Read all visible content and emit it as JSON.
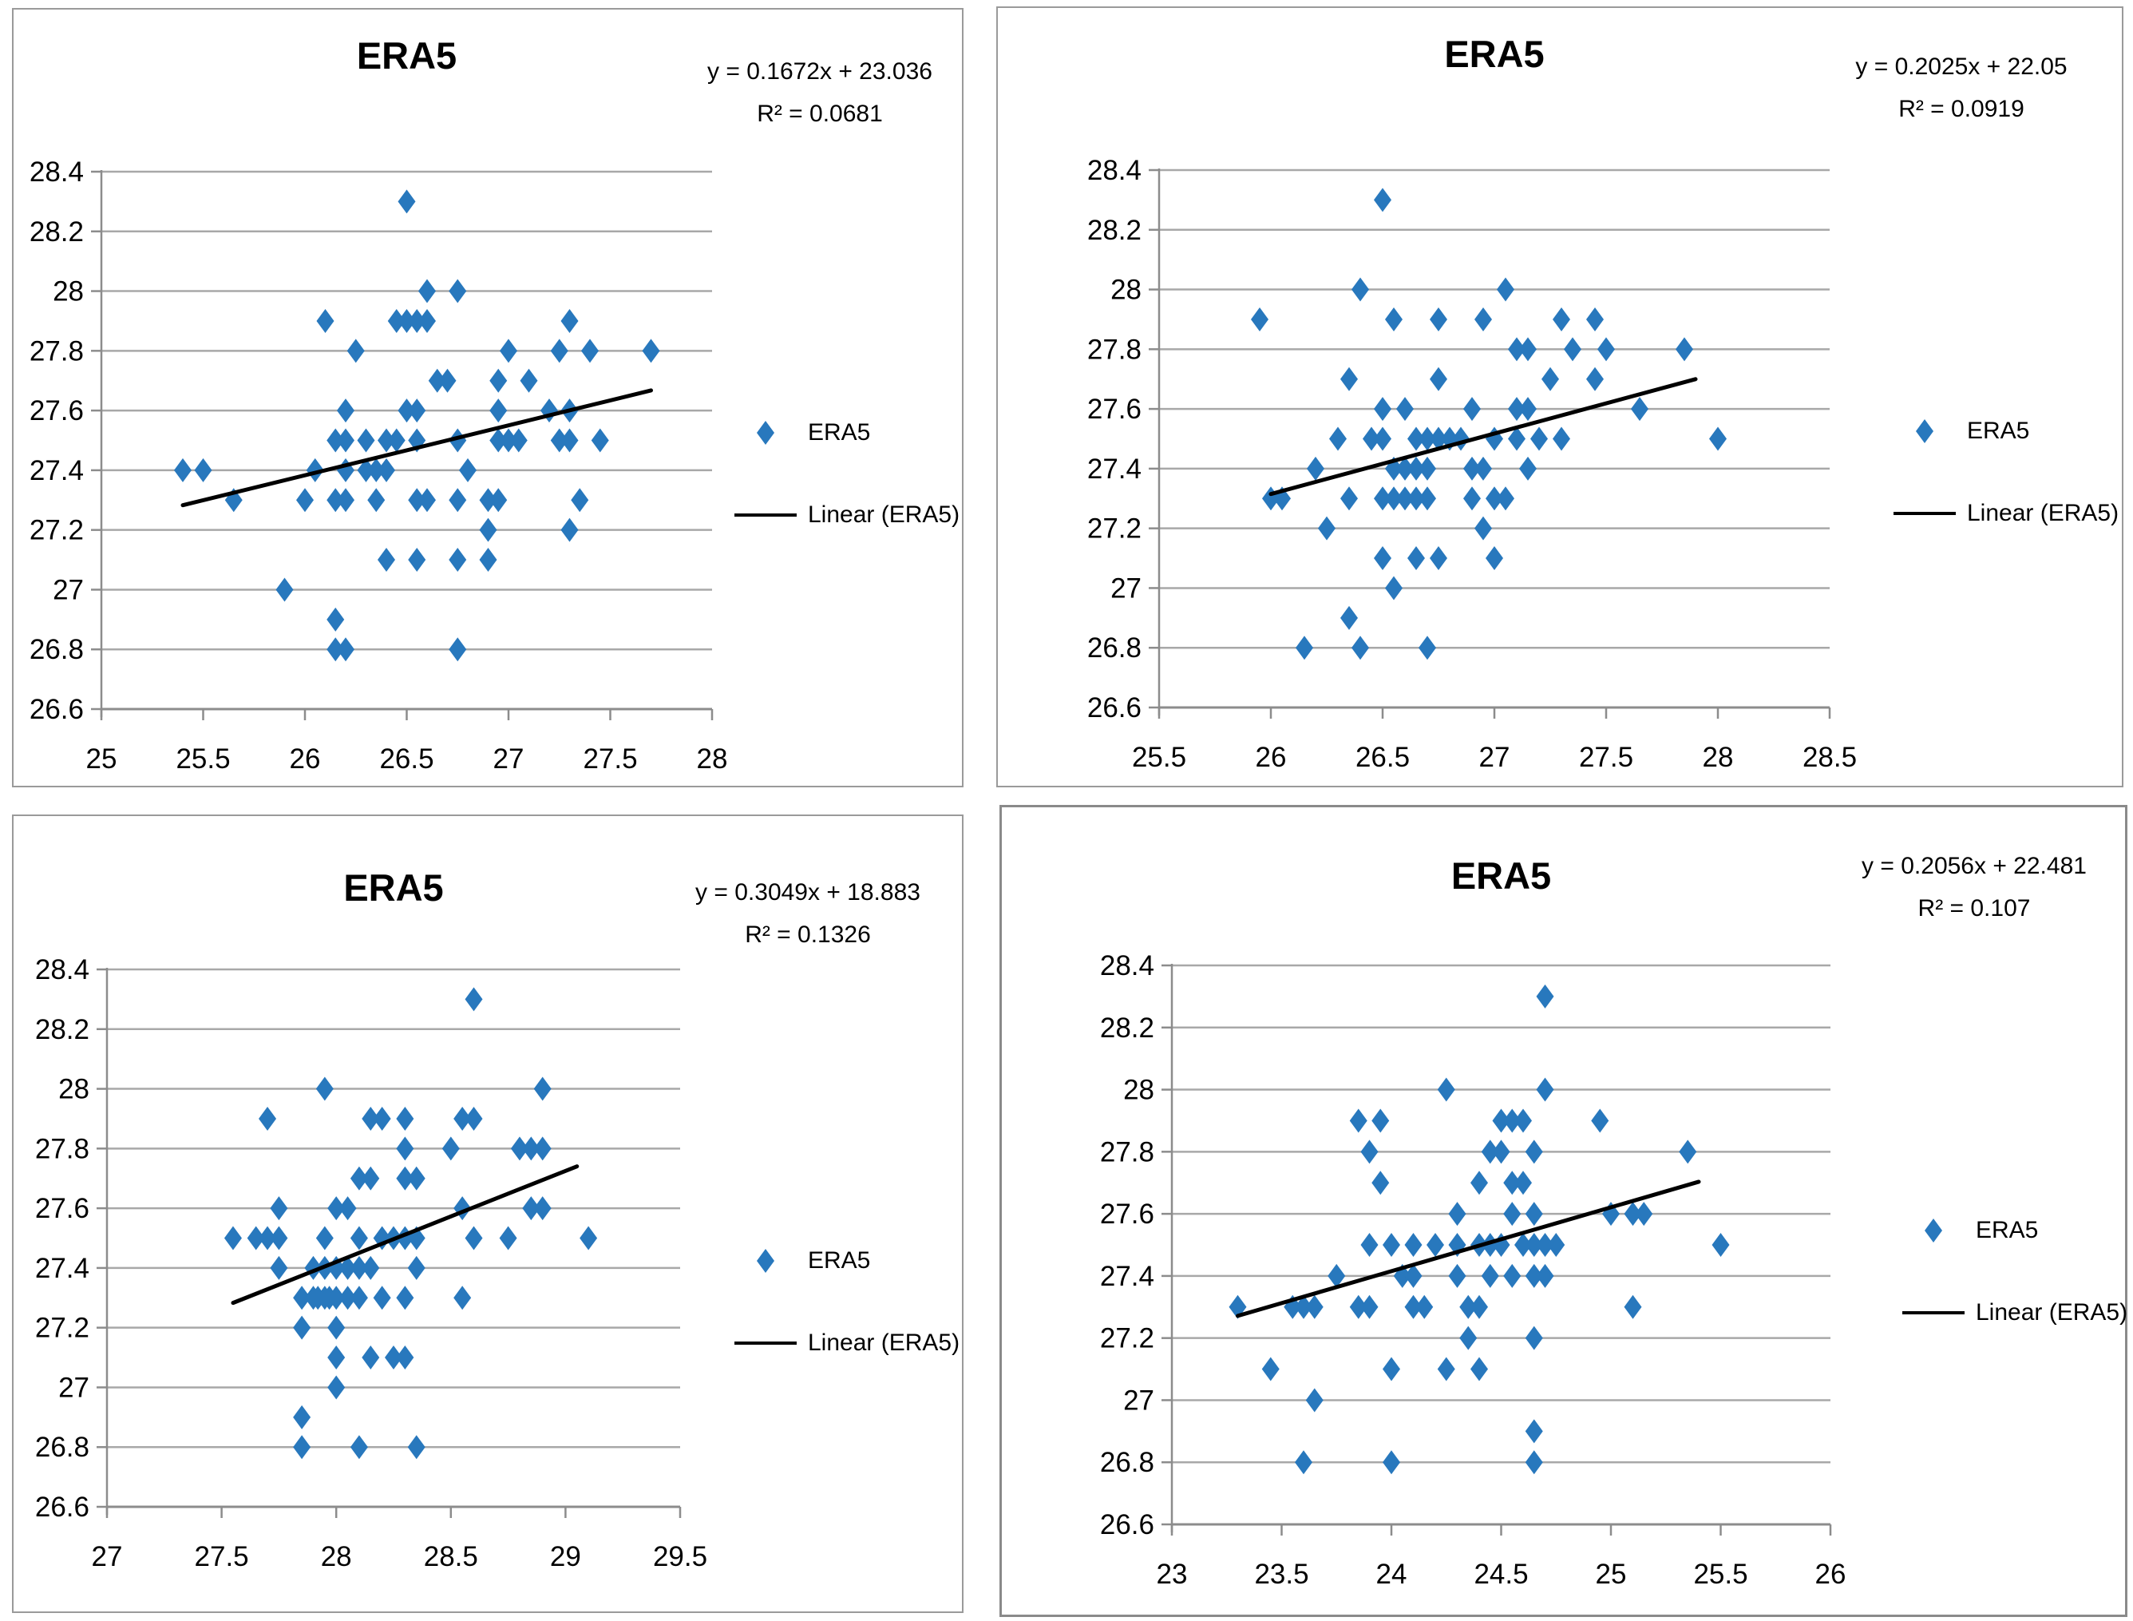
{
  "colors": {
    "marker": "#2878BD",
    "trendline": "#000000",
    "gridline": "#a8a8a8",
    "axis": "#8c8c8c",
    "text": "#000000"
  },
  "chart_data": [
    {
      "type": "scatter",
      "title": "ERA5",
      "equation": "y = 0.1672x + 23.036",
      "r2": "R² = 0.0681",
      "legend": {
        "series_label": "ERA5",
        "trend_label": "Linear (ERA5)"
      },
      "xlim": [
        25,
        28
      ],
      "ylim": [
        26.6,
        28.4
      ],
      "x_ticks": [
        "25",
        "25.5",
        "26",
        "26.5",
        "27",
        "27.5",
        "28"
      ],
      "y_ticks": [
        "26.6",
        "26.8",
        "27",
        "27.2",
        "27.4",
        "27.6",
        "27.8",
        "28",
        "28.2",
        "28.4"
      ],
      "grid": true,
      "legend_position": "right",
      "trend": {
        "slope": 0.1672,
        "intercept": 23.036,
        "x_start": 25.4,
        "x_end": 27.7
      },
      "points": [
        [
          26.5,
          28.3
        ],
        [
          26.6,
          28.0
        ],
        [
          26.75,
          28.0
        ],
        [
          26.1,
          27.9
        ],
        [
          26.45,
          27.9
        ],
        [
          26.5,
          27.9
        ],
        [
          26.55,
          27.9
        ],
        [
          26.6,
          27.9
        ],
        [
          27.3,
          27.9
        ],
        [
          26.25,
          27.8
        ],
        [
          27.0,
          27.8
        ],
        [
          27.25,
          27.8
        ],
        [
          27.4,
          27.8
        ],
        [
          27.7,
          27.8
        ],
        [
          26.65,
          27.7
        ],
        [
          26.7,
          27.7
        ],
        [
          26.95,
          27.7
        ],
        [
          27.1,
          27.7
        ],
        [
          26.2,
          27.6
        ],
        [
          26.5,
          27.6
        ],
        [
          26.55,
          27.6
        ],
        [
          26.95,
          27.6
        ],
        [
          27.2,
          27.6
        ],
        [
          27.3,
          27.6
        ],
        [
          26.15,
          27.5
        ],
        [
          26.2,
          27.5
        ],
        [
          26.3,
          27.5
        ],
        [
          26.4,
          27.5
        ],
        [
          26.45,
          27.5
        ],
        [
          26.55,
          27.5
        ],
        [
          26.75,
          27.5
        ],
        [
          26.95,
          27.5
        ],
        [
          27.0,
          27.5
        ],
        [
          27.05,
          27.5
        ],
        [
          27.25,
          27.5
        ],
        [
          27.3,
          27.5
        ],
        [
          27.45,
          27.5
        ],
        [
          25.4,
          27.4
        ],
        [
          25.5,
          27.4
        ],
        [
          26.05,
          27.4
        ],
        [
          26.2,
          27.4
        ],
        [
          26.3,
          27.4
        ],
        [
          26.35,
          27.4
        ],
        [
          26.4,
          27.4
        ],
        [
          26.8,
          27.4
        ],
        [
          25.65,
          27.3
        ],
        [
          26.0,
          27.3
        ],
        [
          26.15,
          27.3
        ],
        [
          26.2,
          27.3
        ],
        [
          26.35,
          27.3
        ],
        [
          26.55,
          27.3
        ],
        [
          26.6,
          27.3
        ],
        [
          26.75,
          27.3
        ],
        [
          26.9,
          27.3
        ],
        [
          26.95,
          27.3
        ],
        [
          27.35,
          27.3
        ],
        [
          26.9,
          27.2
        ],
        [
          27.3,
          27.2
        ],
        [
          26.4,
          27.1
        ],
        [
          26.55,
          27.1
        ],
        [
          26.75,
          27.1
        ],
        [
          26.9,
          27.1
        ],
        [
          25.9,
          27.0
        ],
        [
          26.15,
          26.9
        ],
        [
          26.15,
          26.8
        ],
        [
          26.2,
          26.8
        ],
        [
          26.75,
          26.8
        ]
      ]
    },
    {
      "type": "scatter",
      "title": "ERA5",
      "equation": "y = 0.2025x + 22.05",
      "r2": "R² = 0.0919",
      "legend": {
        "series_label": "ERA5",
        "trend_label": "Linear (ERA5)"
      },
      "xlim": [
        25.5,
        28.5
      ],
      "ylim": [
        26.6,
        28.4
      ],
      "x_ticks": [
        "25.5",
        "26",
        "26.5",
        "27",
        "27.5",
        "28",
        "28.5"
      ],
      "y_ticks": [
        "26.6",
        "26.8",
        "27",
        "27.2",
        "27.4",
        "27.6",
        "27.8",
        "28",
        "28.2",
        "28.4"
      ],
      "grid": true,
      "legend_position": "right",
      "trend": {
        "slope": 0.2025,
        "intercept": 22.05,
        "x_start": 26.0,
        "x_end": 27.9
      },
      "points": [
        [
          26.5,
          28.3
        ],
        [
          26.4,
          28.0
        ],
        [
          27.05,
          28.0
        ],
        [
          25.95,
          27.9
        ],
        [
          26.55,
          27.9
        ],
        [
          26.75,
          27.9
        ],
        [
          26.95,
          27.9
        ],
        [
          27.3,
          27.9
        ],
        [
          27.45,
          27.9
        ],
        [
          27.1,
          27.8
        ],
        [
          27.15,
          27.8
        ],
        [
          27.35,
          27.8
        ],
        [
          27.5,
          27.8
        ],
        [
          27.85,
          27.8
        ],
        [
          26.35,
          27.7
        ],
        [
          26.75,
          27.7
        ],
        [
          27.25,
          27.7
        ],
        [
          27.45,
          27.7
        ],
        [
          26.5,
          27.6
        ],
        [
          26.6,
          27.6
        ],
        [
          26.9,
          27.6
        ],
        [
          27.1,
          27.6
        ],
        [
          27.15,
          27.6
        ],
        [
          27.65,
          27.6
        ],
        [
          26.3,
          27.5
        ],
        [
          26.45,
          27.5
        ],
        [
          26.5,
          27.5
        ],
        [
          26.65,
          27.5
        ],
        [
          26.7,
          27.5
        ],
        [
          26.75,
          27.5
        ],
        [
          26.8,
          27.5
        ],
        [
          26.85,
          27.5
        ],
        [
          27.0,
          27.5
        ],
        [
          27.1,
          27.5
        ],
        [
          27.2,
          27.5
        ],
        [
          27.3,
          27.5
        ],
        [
          28.0,
          27.5
        ],
        [
          26.2,
          27.4
        ],
        [
          26.55,
          27.4
        ],
        [
          26.6,
          27.4
        ],
        [
          26.65,
          27.4
        ],
        [
          26.7,
          27.4
        ],
        [
          26.9,
          27.4
        ],
        [
          26.95,
          27.4
        ],
        [
          27.15,
          27.4
        ],
        [
          26.0,
          27.3
        ],
        [
          26.05,
          27.3
        ],
        [
          26.35,
          27.3
        ],
        [
          26.5,
          27.3
        ],
        [
          26.55,
          27.3
        ],
        [
          26.6,
          27.3
        ],
        [
          26.65,
          27.3
        ],
        [
          26.7,
          27.3
        ],
        [
          26.9,
          27.3
        ],
        [
          27.0,
          27.3
        ],
        [
          27.05,
          27.3
        ],
        [
          26.25,
          27.2
        ],
        [
          26.95,
          27.2
        ],
        [
          26.5,
          27.1
        ],
        [
          26.65,
          27.1
        ],
        [
          26.75,
          27.1
        ],
        [
          27.0,
          27.1
        ],
        [
          26.55,
          27.0
        ],
        [
          26.35,
          26.9
        ],
        [
          26.15,
          26.8
        ],
        [
          26.4,
          26.8
        ],
        [
          26.7,
          26.8
        ]
      ]
    },
    {
      "type": "scatter",
      "title": "ERA5",
      "equation": "y = 0.3049x + 18.883",
      "r2": "R² = 0.1326",
      "legend": {
        "series_label": "ERA5",
        "trend_label": "Linear (ERA5)"
      },
      "xlim": [
        27,
        29.5
      ],
      "ylim": [
        26.6,
        28.4
      ],
      "x_ticks": [
        "27",
        "27.5",
        "28",
        "28.5",
        "29",
        "29.5"
      ],
      "y_ticks": [
        "26.6",
        "26.8",
        "27",
        "27.2",
        "27.4",
        "27.6",
        "27.8",
        "28",
        "28.2",
        "28.4"
      ],
      "grid": true,
      "legend_position": "right",
      "trend": {
        "slope": 0.3049,
        "intercept": 18.883,
        "x_start": 27.55,
        "x_end": 29.05
      },
      "points": [
        [
          28.6,
          28.3
        ],
        [
          27.95,
          28.0
        ],
        [
          28.9,
          28.0
        ],
        [
          27.7,
          27.9
        ],
        [
          28.15,
          27.9
        ],
        [
          28.2,
          27.9
        ],
        [
          28.3,
          27.9
        ],
        [
          28.55,
          27.9
        ],
        [
          28.6,
          27.9
        ],
        [
          28.3,
          27.8
        ],
        [
          28.5,
          27.8
        ],
        [
          28.8,
          27.8
        ],
        [
          28.85,
          27.8
        ],
        [
          28.9,
          27.8
        ],
        [
          28.1,
          27.7
        ],
        [
          28.15,
          27.7
        ],
        [
          28.3,
          27.7
        ],
        [
          28.35,
          27.7
        ],
        [
          27.75,
          27.6
        ],
        [
          28.0,
          27.6
        ],
        [
          28.05,
          27.6
        ],
        [
          28.55,
          27.6
        ],
        [
          28.85,
          27.6
        ],
        [
          28.9,
          27.6
        ],
        [
          27.55,
          27.5
        ],
        [
          27.65,
          27.5
        ],
        [
          27.7,
          27.5
        ],
        [
          27.75,
          27.5
        ],
        [
          27.95,
          27.5
        ],
        [
          28.1,
          27.5
        ],
        [
          28.2,
          27.5
        ],
        [
          28.25,
          27.5
        ],
        [
          28.3,
          27.5
        ],
        [
          28.35,
          27.5
        ],
        [
          28.6,
          27.5
        ],
        [
          28.75,
          27.5
        ],
        [
          29.1,
          27.5
        ],
        [
          27.75,
          27.4
        ],
        [
          27.9,
          27.4
        ],
        [
          27.95,
          27.4
        ],
        [
          28.0,
          27.4
        ],
        [
          28.05,
          27.4
        ],
        [
          28.1,
          27.4
        ],
        [
          28.15,
          27.4
        ],
        [
          28.35,
          27.4
        ],
        [
          27.85,
          27.3
        ],
        [
          27.9,
          27.3
        ],
        [
          27.92,
          27.3
        ],
        [
          27.95,
          27.3
        ],
        [
          27.97,
          27.3
        ],
        [
          28.0,
          27.3
        ],
        [
          28.05,
          27.3
        ],
        [
          28.1,
          27.3
        ],
        [
          28.2,
          27.3
        ],
        [
          28.3,
          27.3
        ],
        [
          28.55,
          27.3
        ],
        [
          27.85,
          27.2
        ],
        [
          28.0,
          27.2
        ],
        [
          28.0,
          27.1
        ],
        [
          28.15,
          27.1
        ],
        [
          28.25,
          27.1
        ],
        [
          28.3,
          27.1
        ],
        [
          28.0,
          27.0
        ],
        [
          27.85,
          26.9
        ],
        [
          27.85,
          26.8
        ],
        [
          28.1,
          26.8
        ],
        [
          28.35,
          26.8
        ]
      ]
    },
    {
      "type": "scatter",
      "title": "ERA5",
      "equation": "y = 0.2056x + 22.481",
      "r2": "R² = 0.107",
      "legend": {
        "series_label": "ERA5",
        "trend_label": "Linear (ERA5)"
      },
      "xlim": [
        23,
        26
      ],
      "ylim": [
        26.6,
        28.4
      ],
      "x_ticks": [
        "23",
        "23.5",
        "24",
        "24.5",
        "25",
        "25.5",
        "26"
      ],
      "y_ticks": [
        "26.6",
        "26.8",
        "27",
        "27.2",
        "27.4",
        "27.6",
        "27.8",
        "28",
        "28.2",
        "28.4"
      ],
      "grid": true,
      "legend_position": "right",
      "trend": {
        "slope": 0.2056,
        "intercept": 22.481,
        "x_start": 23.3,
        "x_end": 25.4
      },
      "points": [
        [
          24.7,
          28.3
        ],
        [
          24.25,
          28.0
        ],
        [
          24.7,
          28.0
        ],
        [
          23.85,
          27.9
        ],
        [
          23.95,
          27.9
        ],
        [
          24.5,
          27.9
        ],
        [
          24.55,
          27.9
        ],
        [
          24.6,
          27.9
        ],
        [
          24.95,
          27.9
        ],
        [
          23.9,
          27.8
        ],
        [
          24.45,
          27.8
        ],
        [
          24.5,
          27.8
        ],
        [
          24.65,
          27.8
        ],
        [
          25.35,
          27.8
        ],
        [
          23.95,
          27.7
        ],
        [
          24.4,
          27.7
        ],
        [
          24.55,
          27.7
        ],
        [
          24.6,
          27.7
        ],
        [
          24.3,
          27.6
        ],
        [
          24.55,
          27.6
        ],
        [
          24.65,
          27.6
        ],
        [
          25.0,
          27.6
        ],
        [
          25.1,
          27.6
        ],
        [
          25.15,
          27.6
        ],
        [
          23.9,
          27.5
        ],
        [
          24.0,
          27.5
        ],
        [
          24.1,
          27.5
        ],
        [
          24.2,
          27.5
        ],
        [
          24.3,
          27.5
        ],
        [
          24.4,
          27.5
        ],
        [
          24.45,
          27.5
        ],
        [
          24.5,
          27.5
        ],
        [
          24.6,
          27.5
        ],
        [
          24.65,
          27.5
        ],
        [
          24.7,
          27.5
        ],
        [
          24.75,
          27.5
        ],
        [
          25.5,
          27.5
        ],
        [
          23.75,
          27.4
        ],
        [
          24.05,
          27.4
        ],
        [
          24.1,
          27.4
        ],
        [
          24.3,
          27.4
        ],
        [
          24.45,
          27.4
        ],
        [
          24.55,
          27.4
        ],
        [
          24.65,
          27.4
        ],
        [
          24.7,
          27.4
        ],
        [
          23.3,
          27.3
        ],
        [
          23.55,
          27.3
        ],
        [
          23.6,
          27.3
        ],
        [
          23.65,
          27.3
        ],
        [
          23.85,
          27.3
        ],
        [
          23.9,
          27.3
        ],
        [
          24.1,
          27.3
        ],
        [
          24.15,
          27.3
        ],
        [
          24.35,
          27.3
        ],
        [
          24.4,
          27.3
        ],
        [
          25.1,
          27.3
        ],
        [
          24.35,
          27.2
        ],
        [
          24.65,
          27.2
        ],
        [
          23.45,
          27.1
        ],
        [
          24.0,
          27.1
        ],
        [
          24.25,
          27.1
        ],
        [
          24.4,
          27.1
        ],
        [
          23.65,
          27.0
        ],
        [
          24.65,
          26.9
        ],
        [
          23.6,
          26.8
        ],
        [
          24.0,
          26.8
        ],
        [
          24.65,
          26.8
        ]
      ]
    }
  ]
}
